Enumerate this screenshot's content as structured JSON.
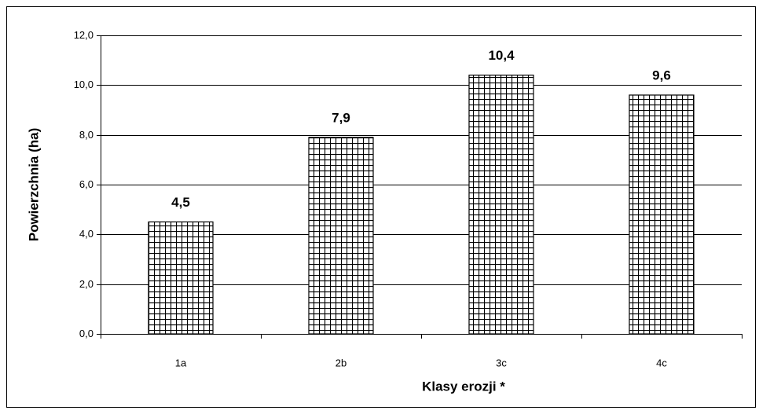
{
  "chart_data": {
    "type": "bar",
    "categories": [
      "1a",
      "2b",
      "3c",
      "4c"
    ],
    "values": [
      4.5,
      7.9,
      10.4,
      9.6
    ],
    "value_labels": [
      "4,5",
      "7,9",
      "10,4",
      "9,6"
    ],
    "x_label": "Klasy erozji *",
    "y_label": "Powierzchnia (ha)",
    "color": "#000000",
    "ylim": [
      0,
      12
    ],
    "yticks": [
      {
        "value": 0,
        "label": "0,0"
      },
      {
        "value": 2,
        "label": "2,0"
      },
      {
        "value": 4,
        "label": "4,0"
      },
      {
        "value": 6,
        "label": "6,0"
      },
      {
        "value": 8,
        "label": "8,0"
      },
      {
        "value": 10,
        "label": "10,0"
      },
      {
        "value": 12,
        "label": "12,0"
      }
    ],
    "grid": true
  }
}
